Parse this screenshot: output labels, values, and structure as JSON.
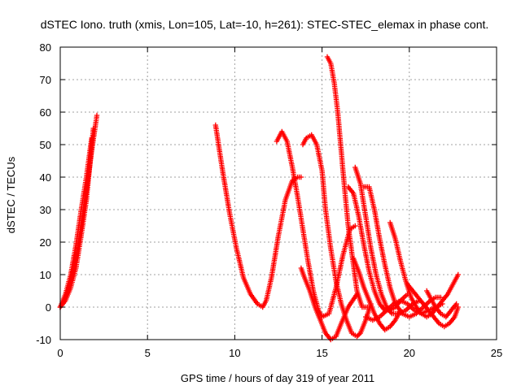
{
  "chart_data": {
    "type": "scatter",
    "title": "dSTEC Iono. truth (xmis, Lon=105, Lat=-10, h=261): STEC-STEC_elemax in phase cont.",
    "xlabel": "GPS time / hours of day 319 of year 2011",
    "ylabel": "dSTEC  / TECUs",
    "xlim": [
      0,
      25
    ],
    "ylim": [
      -10,
      80
    ],
    "x_ticks": [
      0,
      5,
      10,
      15,
      20,
      25
    ],
    "y_ticks": [
      -10,
      0,
      10,
      20,
      30,
      40,
      50,
      60,
      70,
      80
    ],
    "x_tick_labels": [
      "0",
      "5",
      "10",
      "15",
      "20",
      "25"
    ],
    "y_tick_labels": [
      "-10",
      "0",
      "10",
      "20",
      "30",
      "40",
      "50",
      "60",
      "70",
      "80"
    ],
    "grid": true,
    "legend": "none",
    "marker": "plus",
    "series_color": "#ff0000",
    "series": [
      {
        "x": [
          0.0,
          0.3,
          0.6,
          0.9,
          1.2,
          1.5,
          1.8,
          2.1
        ],
        "y": [
          0,
          3,
          8,
          15,
          25,
          36,
          48,
          59
        ]
      },
      {
        "x": [
          0.0,
          0.3,
          0.6,
          0.9,
          1.2,
          1.5,
          1.8
        ],
        "y": [
          0,
          4,
          10,
          19,
          30,
          40,
          52
        ]
      },
      {
        "x": [
          0.0,
          0.3,
          0.6,
          0.9,
          1.2,
          1.5,
          1.9
        ],
        "y": [
          0,
          2,
          6,
          12,
          22,
          33,
          55
        ]
      },
      {
        "x": [
          8.9,
          9.3,
          9.7,
          10.1,
          10.5,
          10.9,
          11.3,
          11.6,
          11.8,
          12.1,
          12.5,
          12.9,
          13.3,
          13.6,
          13.8
        ],
        "y": [
          56,
          42,
          29,
          18,
          9,
          4,
          1,
          0,
          2,
          9,
          22,
          33,
          39,
          40,
          40
        ]
      },
      {
        "x": [
          12.4,
          12.7,
          13.0,
          13.3,
          13.6,
          13.9,
          14.2,
          14.5,
          14.8,
          15.0,
          15.4,
          15.8,
          16.2,
          16.6,
          16.9
        ],
        "y": [
          51,
          54,
          51,
          43,
          34,
          24,
          14,
          5,
          -1,
          -3,
          -2,
          6,
          16,
          24,
          25
        ]
      },
      {
        "x": [
          13.9,
          14.1,
          14.4,
          14.7,
          15.0,
          15.2,
          15.5,
          15.8,
          16.1,
          16.4,
          16.7,
          17.0,
          17.2,
          17.5,
          17.8
        ],
        "y": [
          50,
          52,
          53,
          50,
          42,
          30,
          18,
          8,
          1,
          -4,
          -8,
          -9,
          -8,
          -4,
          1
        ]
      },
      {
        "x": [
          15.3,
          15.5,
          15.7,
          15.9,
          16.1,
          16.3,
          16.5,
          16.8,
          17.0,
          17.3,
          17.6
        ],
        "y": [
          77,
          75,
          69,
          60,
          48,
          36,
          25,
          13,
          5,
          0,
          0
        ]
      },
      {
        "x": [
          13.8,
          14.0,
          14.3,
          14.6,
          14.9,
          15.2,
          15.5,
          15.8,
          16.1,
          16.5,
          17.0
        ],
        "y": [
          12,
          9,
          5,
          0,
          -4,
          -8,
          -10,
          -9,
          -5,
          0,
          4
        ]
      },
      {
        "x": [
          16.5,
          16.8,
          17.1,
          17.4,
          17.7,
          18.0,
          18.3,
          18.6,
          18.9,
          19.2,
          19.5,
          19.9
        ],
        "y": [
          37,
          35,
          28,
          19,
          11,
          5,
          1,
          -1,
          -1,
          0,
          2,
          4
        ]
      },
      {
        "x": [
          16.9,
          17.2,
          17.5,
          17.8,
          18.1,
          18.4,
          18.7,
          19.0,
          19.4,
          19.8,
          20.2,
          20.6
        ],
        "y": [
          43,
          38,
          28,
          18,
          10,
          4,
          0,
          -2,
          -2,
          -1,
          1,
          2
        ]
      },
      {
        "x": [
          17.4,
          17.7,
          18.0,
          18.3,
          18.6,
          18.9,
          19.2,
          19.6,
          20.0,
          20.4,
          20.8,
          21.2,
          21.5,
          21.8
        ],
        "y": [
          37,
          37,
          30,
          21,
          13,
          6,
          1,
          -2,
          -3,
          -2,
          0,
          2,
          3,
          3
        ]
      },
      {
        "x": [
          16.8,
          17.1,
          17.4,
          17.7,
          18.0,
          18.3,
          18.6,
          18.9,
          19.2,
          19.5
        ],
        "y": [
          15,
          11,
          6,
          2,
          -2,
          -5,
          -7,
          -6,
          -4,
          -1
        ]
      },
      {
        "x": [
          18.9,
          19.2,
          19.5,
          19.8,
          20.1,
          20.4,
          20.7,
          21.0,
          21.3,
          21.6,
          21.9,
          22.2,
          22.5,
          22.8
        ],
        "y": [
          26,
          21,
          14,
          8,
          3,
          0,
          -2,
          -3,
          -2,
          0,
          2,
          4,
          7,
          10
        ]
      },
      {
        "x": [
          17.5,
          17.9,
          18.3,
          18.7,
          19.1,
          19.5,
          19.9,
          20.3,
          20.7,
          21.1,
          21.5,
          21.9
        ],
        "y": [
          -3,
          -4,
          -3,
          -1,
          1,
          2,
          1,
          -1,
          -2,
          -1,
          0,
          1
        ]
      },
      {
        "x": [
          19.9,
          20.2,
          20.5,
          20.8,
          21.1,
          21.4,
          21.7,
          22.0,
          22.3,
          22.6,
          22.8
        ],
        "y": [
          7,
          5,
          3,
          1,
          -1,
          -3,
          -5,
          -6,
          -5,
          -3,
          0
        ]
      },
      {
        "x": [
          21.0,
          21.2,
          21.5,
          21.8,
          22.1,
          22.4,
          22.7
        ],
        "y": [
          5,
          3,
          0,
          -2,
          -3,
          -1,
          1
        ]
      }
    ]
  }
}
